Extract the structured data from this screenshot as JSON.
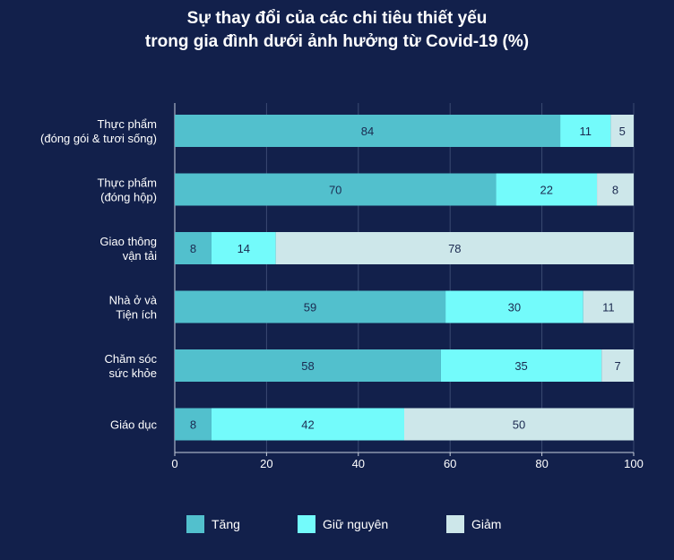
{
  "chart_data": {
    "type": "bar",
    "orientation": "horizontal",
    "stacked": true,
    "title_lines": [
      "Sự thay đổi của các chi tiêu thiết yếu",
      "trong gia đình dưới ảnh hưởng từ Covid-19 (%)"
    ],
    "categories": [
      [
        "Thực phẩm",
        "(đóng gói & tươi sống)"
      ],
      [
        "Thực phẩm",
        "(đóng hộp)"
      ],
      [
        "Giao thông",
        "vận tải"
      ],
      [
        "Nhà ở và",
        "Tiện ích"
      ],
      [
        "Chăm sóc",
        "sức khỏe"
      ],
      [
        "Giáo dục"
      ]
    ],
    "series": [
      {
        "name": "Tăng",
        "color": "#52c0cd",
        "values": [
          84,
          70,
          8,
          59,
          58,
          8
        ]
      },
      {
        "name": "Giữ nguyên",
        "color": "#73fbfb",
        "values": [
          11,
          22,
          14,
          30,
          35,
          42
        ]
      },
      {
        "name": "Giảm",
        "color": "#cde7ea",
        "values": [
          5,
          8,
          78,
          11,
          7,
          50
        ]
      }
    ],
    "xlim": [
      0,
      100
    ],
    "xticks": [
      0,
      20,
      40,
      60,
      80,
      100
    ],
    "legend_position": "bottom"
  }
}
